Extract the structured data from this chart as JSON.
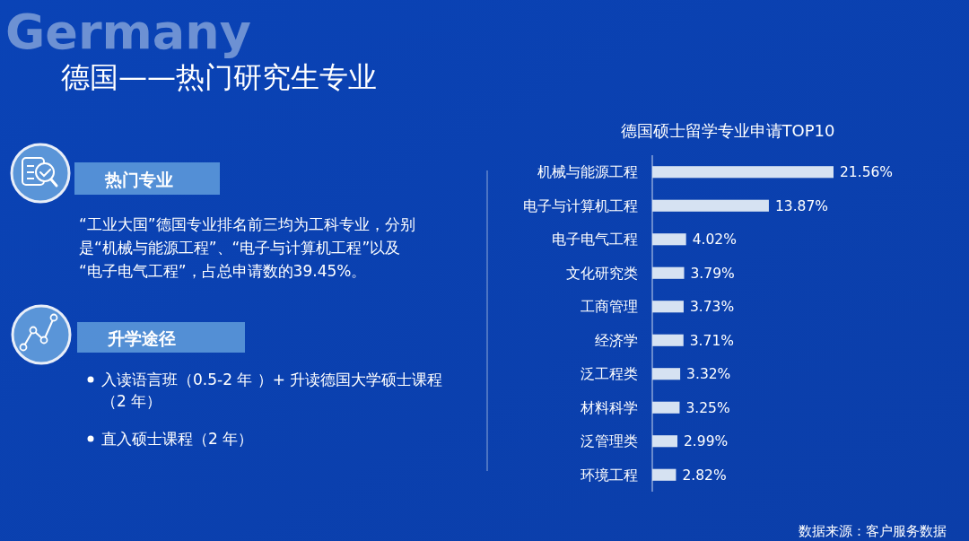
{
  "chart_data": [
    {
      "type": "other",
      "title": "德国——热门研究生专业",
      "annotations": [
        "Germany",
        "热门专业",
        "“工业大国”德国专业排名前三均为工科专业，分别是“机械与能源工程”、“电子与计算机工程”以及“电子电气工程”，占总申请数的39.45%。",
        "升学途径",
        "入读语言班（0.5-2 年 ）+ 升读德国大学硕士课程（2 年）",
        "直入硕士课程（2 年）"
      ]
    },
    {
      "type": "bar",
      "orientation": "horizontal",
      "title": "德国硕士留学专业申请TOP10",
      "categories": [
        "机械与能源工程",
        "电子与计算机工程",
        "电子电气工程",
        "文化研究类",
        "工商管理",
        "经济学",
        "泛工程类",
        "材料科学",
        "泛管理类",
        "环境工程"
      ],
      "values": [
        21.56,
        13.87,
        4.02,
        3.79,
        3.73,
        3.71,
        3.32,
        3.25,
        2.99,
        2.82
      ],
      "value_labels": [
        "21.56%",
        "13.87%",
        "4.02%",
        "3.79%",
        "3.73%",
        "3.71%",
        "3.32%",
        "3.25%",
        "2.99%",
        "2.82%"
      ],
      "color": "#d6e2f2",
      "annotations": [
        "数据来源：客户服务数据"
      ]
    }
  ]
}
